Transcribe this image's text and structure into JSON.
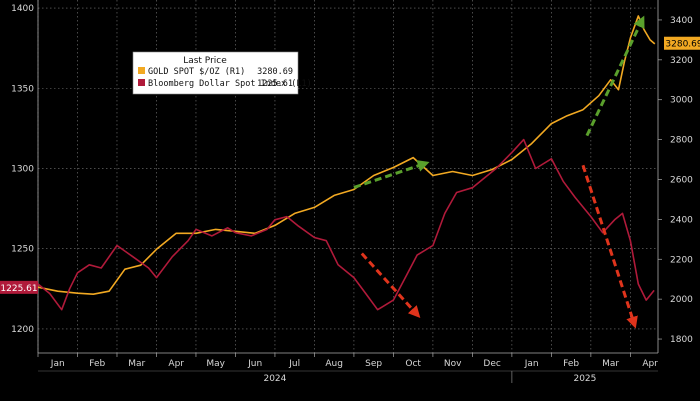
{
  "chart_data": {
    "type": "line",
    "legend": {
      "title": "Last Price",
      "placement": "top-left",
      "entries": [
        {
          "label": "GOLD SPOT $/OZ  (R1)",
          "value": "3280.69",
          "color": "#f2a922"
        },
        {
          "label": "Bloomberg Dollar Spot Index  (L1)",
          "value": "1225.61",
          "color": "#b01a3a"
        }
      ]
    },
    "left_axis": {
      "ticks": [
        "1200",
        "1250",
        "1300",
        "1350",
        "1400"
      ],
      "range": [
        1185,
        1405
      ]
    },
    "right_axis": {
      "ticks": [
        "1800",
        "2000",
        "2200",
        "2400",
        "2600",
        "2800",
        "3000",
        "3200",
        "3400"
      ],
      "range": [
        1730,
        3500
      ]
    },
    "x_axis": {
      "months": [
        "Jan",
        "Feb",
        "Mar",
        "Apr",
        "May",
        "Jun",
        "Jul",
        "Aug",
        "Sep",
        "Oct",
        "Nov",
        "Dec",
        "Jan",
        "Feb",
        "Mar",
        "Apr"
      ],
      "years": [
        "2024",
        "2025"
      ],
      "range": [
        0,
        15.7
      ]
    },
    "grid": true,
    "series": [
      {
        "name": "GOLD SPOT $/OZ",
        "axis": "right",
        "color": "#f2a922",
        "last_value": "3280.69",
        "x": [
          0,
          0.5,
          1.0,
          1.4,
          1.8,
          2.2,
          2.6,
          3.0,
          3.5,
          4.0,
          4.5,
          5.0,
          5.5,
          6.0,
          6.5,
          7.0,
          7.5,
          8.0,
          8.5,
          9.0,
          9.5,
          10.0,
          10.5,
          11.0,
          11.5,
          12.0,
          12.5,
          13.0,
          13.4,
          13.8,
          14.2,
          14.5,
          14.7,
          14.85,
          15.0,
          15.2,
          15.35,
          15.5,
          15.62
        ],
        "values": [
          2060,
          2040,
          2030,
          2025,
          2040,
          2150,
          2170,
          2250,
          2330,
          2330,
          2350,
          2340,
          2330,
          2370,
          2430,
          2460,
          2520,
          2550,
          2620,
          2660,
          2710,
          2620,
          2640,
          2620,
          2650,
          2700,
          2780,
          2880,
          2920,
          2950,
          3020,
          3100,
          3050,
          3190,
          3310,
          3420,
          3350,
          3300,
          3280
        ]
      },
      {
        "name": "Bloomberg Dollar Spot Index",
        "axis": "left",
        "color": "#b01a3a",
        "last_value": "1225.61",
        "x": [
          0,
          0.3,
          0.6,
          0.8,
          1.0,
          1.3,
          1.6,
          2.0,
          2.4,
          2.8,
          3.0,
          3.4,
          3.8,
          4.0,
          4.4,
          4.8,
          5.0,
          5.4,
          5.8,
          6.0,
          6.3,
          6.6,
          7.0,
          7.3,
          7.6,
          8.0,
          8.3,
          8.6,
          9.0,
          9.3,
          9.6,
          10.0,
          10.3,
          10.6,
          11.0,
          11.3,
          11.6,
          12.0,
          12.3,
          12.6,
          13.0,
          13.3,
          13.6,
          14.0,
          14.3,
          14.6,
          14.8,
          15.0,
          15.2,
          15.4,
          15.6
        ],
        "values": [
          1228,
          1222,
          1212,
          1225,
          1235,
          1240,
          1238,
          1252,
          1245,
          1238,
          1232,
          1245,
          1255,
          1262,
          1258,
          1263,
          1260,
          1258,
          1262,
          1268,
          1270,
          1264,
          1257,
          1255,
          1240,
          1232,
          1222,
          1212,
          1218,
          1232,
          1246,
          1252,
          1272,
          1285,
          1288,
          1294,
          1300,
          1310,
          1318,
          1300,
          1306,
          1292,
          1282,
          1270,
          1260,
          1268,
          1272,
          1255,
          1228,
          1218,
          1224
        ]
      }
    ],
    "annotations": [
      {
        "name": "green-arrow-1",
        "color": "#5aa02c",
        "from": [
          8.0,
          2560
        ],
        "to": [
          9.8,
          2680
        ]
      },
      {
        "name": "red-arrow-1",
        "color": "#e0341c",
        "from": [
          8.2,
          1247
        ],
        "to": [
          9.6,
          1209
        ]
      },
      {
        "name": "green-arrow-2",
        "color": "#5aa02c",
        "from": [
          13.9,
          2820
        ],
        "to": [
          15.3,
          3400
        ]
      },
      {
        "name": "red-arrow-2",
        "color": "#e0341c",
        "from": [
          13.8,
          1302
        ],
        "to": [
          15.1,
          1203
        ]
      }
    ],
    "badges": [
      {
        "label": "1225.61",
        "axis": "left",
        "value": 1225.61,
        "bg": "#b01a3a",
        "fg": "#ffffff"
      },
      {
        "label": "3280.69",
        "axis": "right",
        "value": 3280.69,
        "bg": "#f2a922",
        "fg": "#000000"
      }
    ]
  }
}
